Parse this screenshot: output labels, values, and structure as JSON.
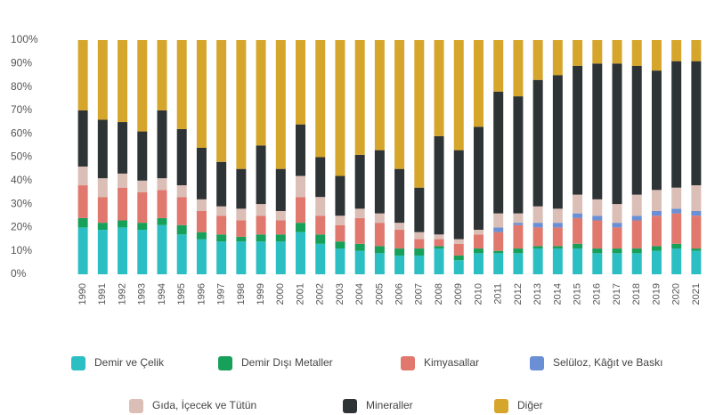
{
  "chart_data": {
    "type": "stacked_bar",
    "categories": [
      "1990",
      "1991",
      "1992",
      "1993",
      "1994",
      "1995",
      "1996",
      "1997",
      "1998",
      "1999",
      "2000",
      "2001",
      "2002",
      "2003",
      "2004",
      "2005",
      "2006",
      "2007",
      "2008",
      "2009",
      "2010",
      "2011",
      "2012",
      "2013",
      "2014",
      "2015",
      "2016",
      "2017",
      "2018",
      "2019",
      "2020",
      "2021"
    ],
    "series": [
      {
        "name": "Demir ve Çelik",
        "color": "#2bbfc4",
        "values": [
          20,
          19,
          20,
          19,
          21,
          17,
          15,
          14,
          14,
          14,
          14,
          18,
          13,
          11,
          10,
          9,
          8,
          8,
          11,
          6,
          9,
          9,
          9,
          11,
          11,
          11,
          9,
          9,
          9,
          10,
          11,
          10
        ]
      },
      {
        "name": "Demir Dışı Metaller",
        "color": "#16a05a",
        "values": [
          4,
          3,
          3,
          3,
          3,
          4,
          3,
          3,
          2,
          3,
          3,
          4,
          4,
          3,
          3,
          3,
          3,
          3,
          1,
          2,
          2,
          1,
          2,
          1,
          1,
          2,
          2,
          2,
          2,
          2,
          2,
          1
        ]
      },
      {
        "name": "Kimyasallar",
        "color": "#e0786e",
        "values": [
          14,
          11,
          14,
          13,
          12,
          12,
          9,
          8,
          7,
          8,
          6,
          11,
          8,
          7,
          11,
          10,
          8,
          4,
          3,
          5,
          6,
          8,
          10,
          8,
          8,
          11,
          12,
          9,
          12,
          13,
          13,
          14
        ]
      },
      {
        "name": "Selüloz, Kâğıt ve Baskı",
        "color": "#6b8fd4",
        "values": [
          0,
          0,
          0,
          0,
          0,
          0,
          0,
          0,
          0,
          0,
          0,
          0,
          0,
          0,
          0,
          0,
          0,
          0,
          0,
          0,
          0,
          2,
          1,
          2,
          2,
          2,
          2,
          2,
          2,
          2,
          2,
          2
        ]
      },
      {
        "name": "Gıda, İçecek ve Tütün",
        "color": "#dbbfb7",
        "values": [
          8,
          8,
          6,
          5,
          5,
          5,
          5,
          4,
          5,
          5,
          4,
          9,
          8,
          4,
          4,
          4,
          3,
          3,
          2,
          2,
          2,
          6,
          4,
          7,
          6,
          8,
          7,
          8,
          9,
          9,
          9,
          11
        ]
      },
      {
        "name": "Mineraller",
        "color": "#2e3436",
        "values": [
          24,
          25,
          22,
          21,
          29,
          24,
          22,
          19,
          17,
          25,
          18,
          22,
          17,
          17,
          23,
          27,
          23,
          19,
          42,
          38,
          44,
          52,
          50,
          54,
          57,
          55,
          58,
          60,
          55,
          51,
          54,
          53
        ]
      },
      {
        "name": "Diğer",
        "color": "#d6a62c",
        "values": [
          30,
          34,
          35,
          39,
          30,
          38,
          46,
          52,
          55,
          45,
          55,
          36,
          50,
          58,
          49,
          47,
          55,
          63,
          41,
          47,
          37,
          22,
          24,
          17,
          15,
          11,
          10,
          10,
          11,
          13,
          9,
          9
        ]
      }
    ],
    "ylim": [
      0,
      100
    ],
    "yticks": [
      {
        "value": 0,
        "label": "0%"
      },
      {
        "value": 10,
        "label": "10%"
      },
      {
        "value": 20,
        "label": "20%"
      },
      {
        "value": 30,
        "label": "30%"
      },
      {
        "value": 40,
        "label": "40%"
      },
      {
        "value": 50,
        "label": "50%"
      },
      {
        "value": 60,
        "label": "60%"
      },
      {
        "value": 70,
        "label": "70%"
      },
      {
        "value": 80,
        "label": "80%"
      },
      {
        "value": 90,
        "label": "90%"
      },
      {
        "value": 100,
        "label": "100%"
      }
    ]
  }
}
